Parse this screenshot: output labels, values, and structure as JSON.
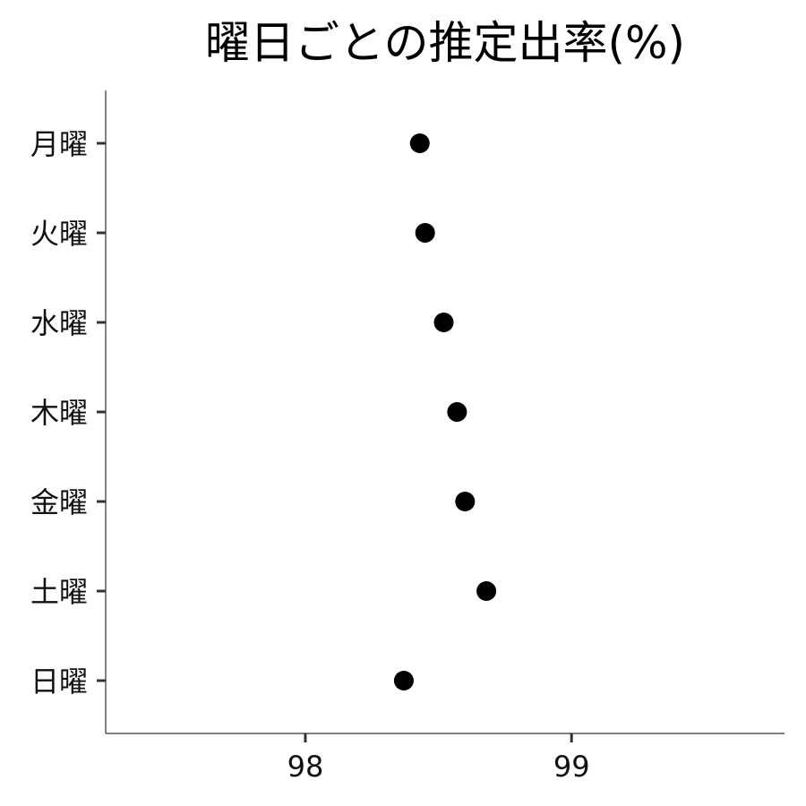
{
  "chart_data": {
    "type": "scatter",
    "title": "曜日ごとの推定出率(%)",
    "xlabel": "",
    "ylabel": "",
    "categories": [
      "月曜",
      "火曜",
      "水曜",
      "木曜",
      "金曜",
      "土曜",
      "日曜"
    ],
    "values": [
      98.43,
      98.45,
      98.52,
      98.57,
      98.6,
      98.68,
      98.37
    ],
    "xlim": [
      97.25,
      99.8
    ],
    "xticks": [
      98,
      99
    ],
    "xtick_labels": [
      "98",
      "99"
    ],
    "grid": false,
    "point_color": "#000000"
  }
}
